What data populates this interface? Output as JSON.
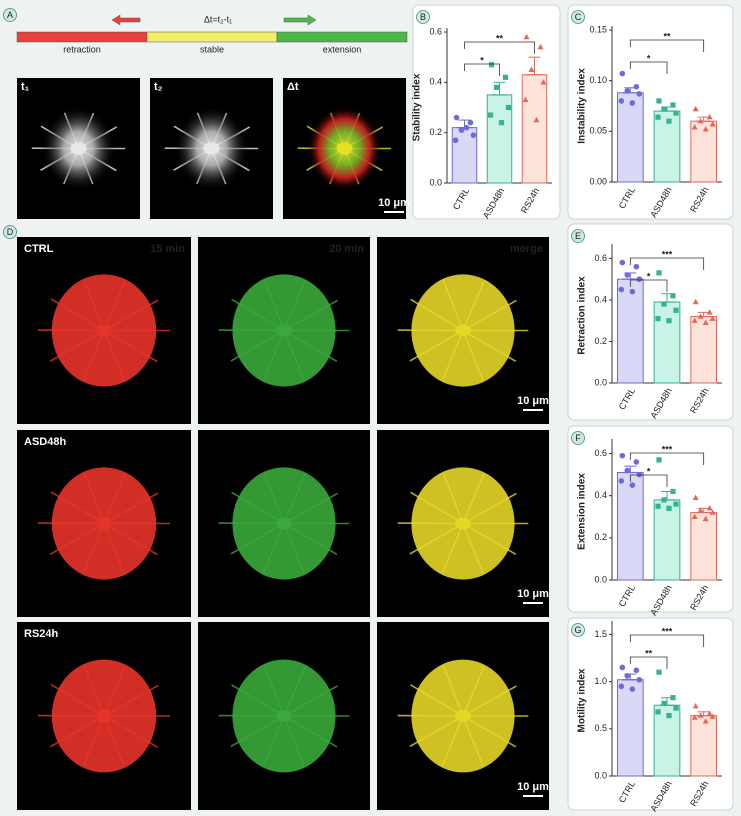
{
  "panel_a": {
    "label": "A",
    "formula": "Δt=t₂-t₁",
    "phases": [
      "retraction",
      "stable",
      "extension"
    ],
    "phase_colors": [
      "#e8403f",
      "#f2ee6a",
      "#4cb848"
    ],
    "images": [
      "t₁",
      "t₂",
      "Δt"
    ],
    "scale_bar": "10 μm"
  },
  "panel_d": {
    "label": "D",
    "columns": [
      "15 min",
      "20 min",
      "merge"
    ],
    "column_colors": [
      "#e8332a",
      "#3aa83a",
      "#e6d628"
    ],
    "rows": [
      "CTRL",
      "ASD48h",
      "RS24h"
    ],
    "scale_bars": [
      "10 μm",
      "10 μm",
      "10 μm"
    ]
  },
  "chart_data": [
    {
      "type": "bar",
      "panel": "B",
      "y_label": "Stability index",
      "categories": [
        "CTRL",
        "ASD48h",
        "RS24h"
      ],
      "values": [
        0.22,
        0.35,
        0.43
      ],
      "errors": [
        0.03,
        0.05,
        0.07
      ],
      "points": [
        [
          0.26,
          0.24,
          0.21,
          0.19,
          0.17,
          0.22
        ],
        [
          0.47,
          0.42,
          0.38,
          0.3,
          0.27,
          0.24
        ],
        [
          0.58,
          0.54,
          0.45,
          0.4,
          0.33,
          0.25
        ]
      ],
      "colors": [
        "#d9d9f7",
        "#c8f3e6",
        "#fde3da"
      ],
      "edge_colors": [
        "#6e6ad8",
        "#34b393",
        "#e06a5a"
      ],
      "ylim": [
        0,
        0.6
      ],
      "yticks": [
        {
          "value": 0,
          "label": "0.0"
        },
        0.2,
        0.4,
        0.6
      ],
      "comparisons": [
        {
          "between": [
            "CTRL",
            "ASD48h"
          ],
          "label": "*"
        },
        {
          "between": [
            "CTRL",
            "RS24h"
          ],
          "label": "**"
        }
      ]
    },
    {
      "type": "bar",
      "panel": "C",
      "y_label": "Instability index",
      "categories": [
        "CTRL",
        "ASD48h",
        "RS24h"
      ],
      "values": [
        0.088,
        0.07,
        0.06
      ],
      "errors": [
        0.005,
        0.004,
        0.004
      ],
      "points": [
        [
          0.107,
          0.094,
          0.09,
          0.087,
          0.08,
          0.078
        ],
        [
          0.08,
          0.076,
          0.072,
          0.068,
          0.064,
          0.06
        ],
        [
          0.072,
          0.064,
          0.06,
          0.057,
          0.054,
          0.052
        ]
      ],
      "colors": [
        "#d9d9f7",
        "#c8f3e6",
        "#fde3da"
      ],
      "edge_colors": [
        "#6e6ad8",
        "#34b393",
        "#e06a5a"
      ],
      "ylim": [
        0,
        0.15
      ],
      "yticks": [
        {
          "value": 0,
          "label": "0.00"
        },
        0.05,
        {
          "value": 0.1,
          "label": "0.10"
        },
        0.15
      ],
      "comparisons": [
        {
          "between": [
            "CTRL",
            "ASD48h"
          ],
          "label": "*"
        },
        {
          "between": [
            "CTRL",
            "RS24h"
          ],
          "label": "**"
        }
      ]
    },
    {
      "type": "bar",
      "panel": "E",
      "y_label": "Retraction index",
      "categories": [
        "CTRL",
        "ASD48h",
        "RS24h"
      ],
      "values": [
        0.5,
        0.39,
        0.32
      ],
      "errors": [
        0.03,
        0.04,
        0.02
      ],
      "points": [
        [
          0.58,
          0.56,
          0.52,
          0.5,
          0.45,
          0.44
        ],
        [
          0.53,
          0.42,
          0.38,
          0.35,
          0.31,
          0.3
        ],
        [
          0.39,
          0.34,
          0.32,
          0.31,
          0.3,
          0.29
        ]
      ],
      "colors": [
        "#d9d9f7",
        "#c8f3e6",
        "#fde3da"
      ],
      "edge_colors": [
        "#6e6ad8",
        "#34b393",
        "#e06a5a"
      ],
      "ylim": [
        0,
        0.65
      ],
      "yticks": [
        {
          "value": 0,
          "label": "0.0"
        },
        0.2,
        0.4,
        0.6
      ],
      "comparisons": [
        {
          "between": [
            "CTRL",
            "ASD48h"
          ],
          "label": "*"
        },
        {
          "between": [
            "CTRL",
            "RS24h"
          ],
          "label": "***"
        }
      ]
    },
    {
      "type": "bar",
      "panel": "F",
      "y_label": "Extension index",
      "categories": [
        "CTRL",
        "ASD48h",
        "RS24h"
      ],
      "values": [
        0.51,
        0.38,
        0.32
      ],
      "errors": [
        0.03,
        0.04,
        0.02
      ],
      "points": [
        [
          0.59,
          0.56,
          0.52,
          0.5,
          0.47,
          0.45
        ],
        [
          0.57,
          0.42,
          0.38,
          0.36,
          0.35,
          0.34
        ],
        [
          0.39,
          0.34,
          0.33,
          0.32,
          0.3,
          0.29
        ]
      ],
      "colors": [
        "#d9d9f7",
        "#c8f3e6",
        "#fde3da"
      ],
      "edge_colors": [
        "#6e6ad8",
        "#34b393",
        "#e06a5a"
      ],
      "ylim": [
        0,
        0.65
      ],
      "yticks": [
        {
          "value": 0,
          "label": "0.0"
        },
        0.2,
        0.4,
        0.6
      ],
      "comparisons": [
        {
          "between": [
            "CTRL",
            "ASD48h"
          ],
          "label": "*"
        },
        {
          "between": [
            "CTRL",
            "RS24h"
          ],
          "label": "***"
        }
      ]
    },
    {
      "type": "bar",
      "panel": "G",
      "y_label": "Motility index",
      "categories": [
        "CTRL",
        "ASD48h",
        "RS24h"
      ],
      "values": [
        1.02,
        0.75,
        0.64
      ],
      "errors": [
        0.06,
        0.08,
        0.04
      ],
      "points": [
        [
          1.15,
          1.12,
          1.06,
          1.02,
          0.95,
          0.92
        ],
        [
          1.1,
          0.83,
          0.77,
          0.72,
          0.68,
          0.64
        ],
        [
          0.74,
          0.66,
          0.64,
          0.63,
          0.62,
          0.58
        ]
      ],
      "colors": [
        "#d9d9f7",
        "#c8f3e6",
        "#fde3da"
      ],
      "edge_colors": [
        "#6e6ad8",
        "#34b393",
        "#e06a5a"
      ],
      "ylim": [
        0,
        1.6
      ],
      "yticks": [
        {
          "value": 0,
          "label": "0.0"
        },
        0.5,
        {
          "value": 1,
          "label": "1.0"
        },
        1.5
      ],
      "comparisons": [
        {
          "between": [
            "CTRL",
            "ASD48h"
          ],
          "label": "**"
        },
        {
          "between": [
            "CTRL",
            "RS24h"
          ],
          "label": "***"
        }
      ]
    }
  ]
}
